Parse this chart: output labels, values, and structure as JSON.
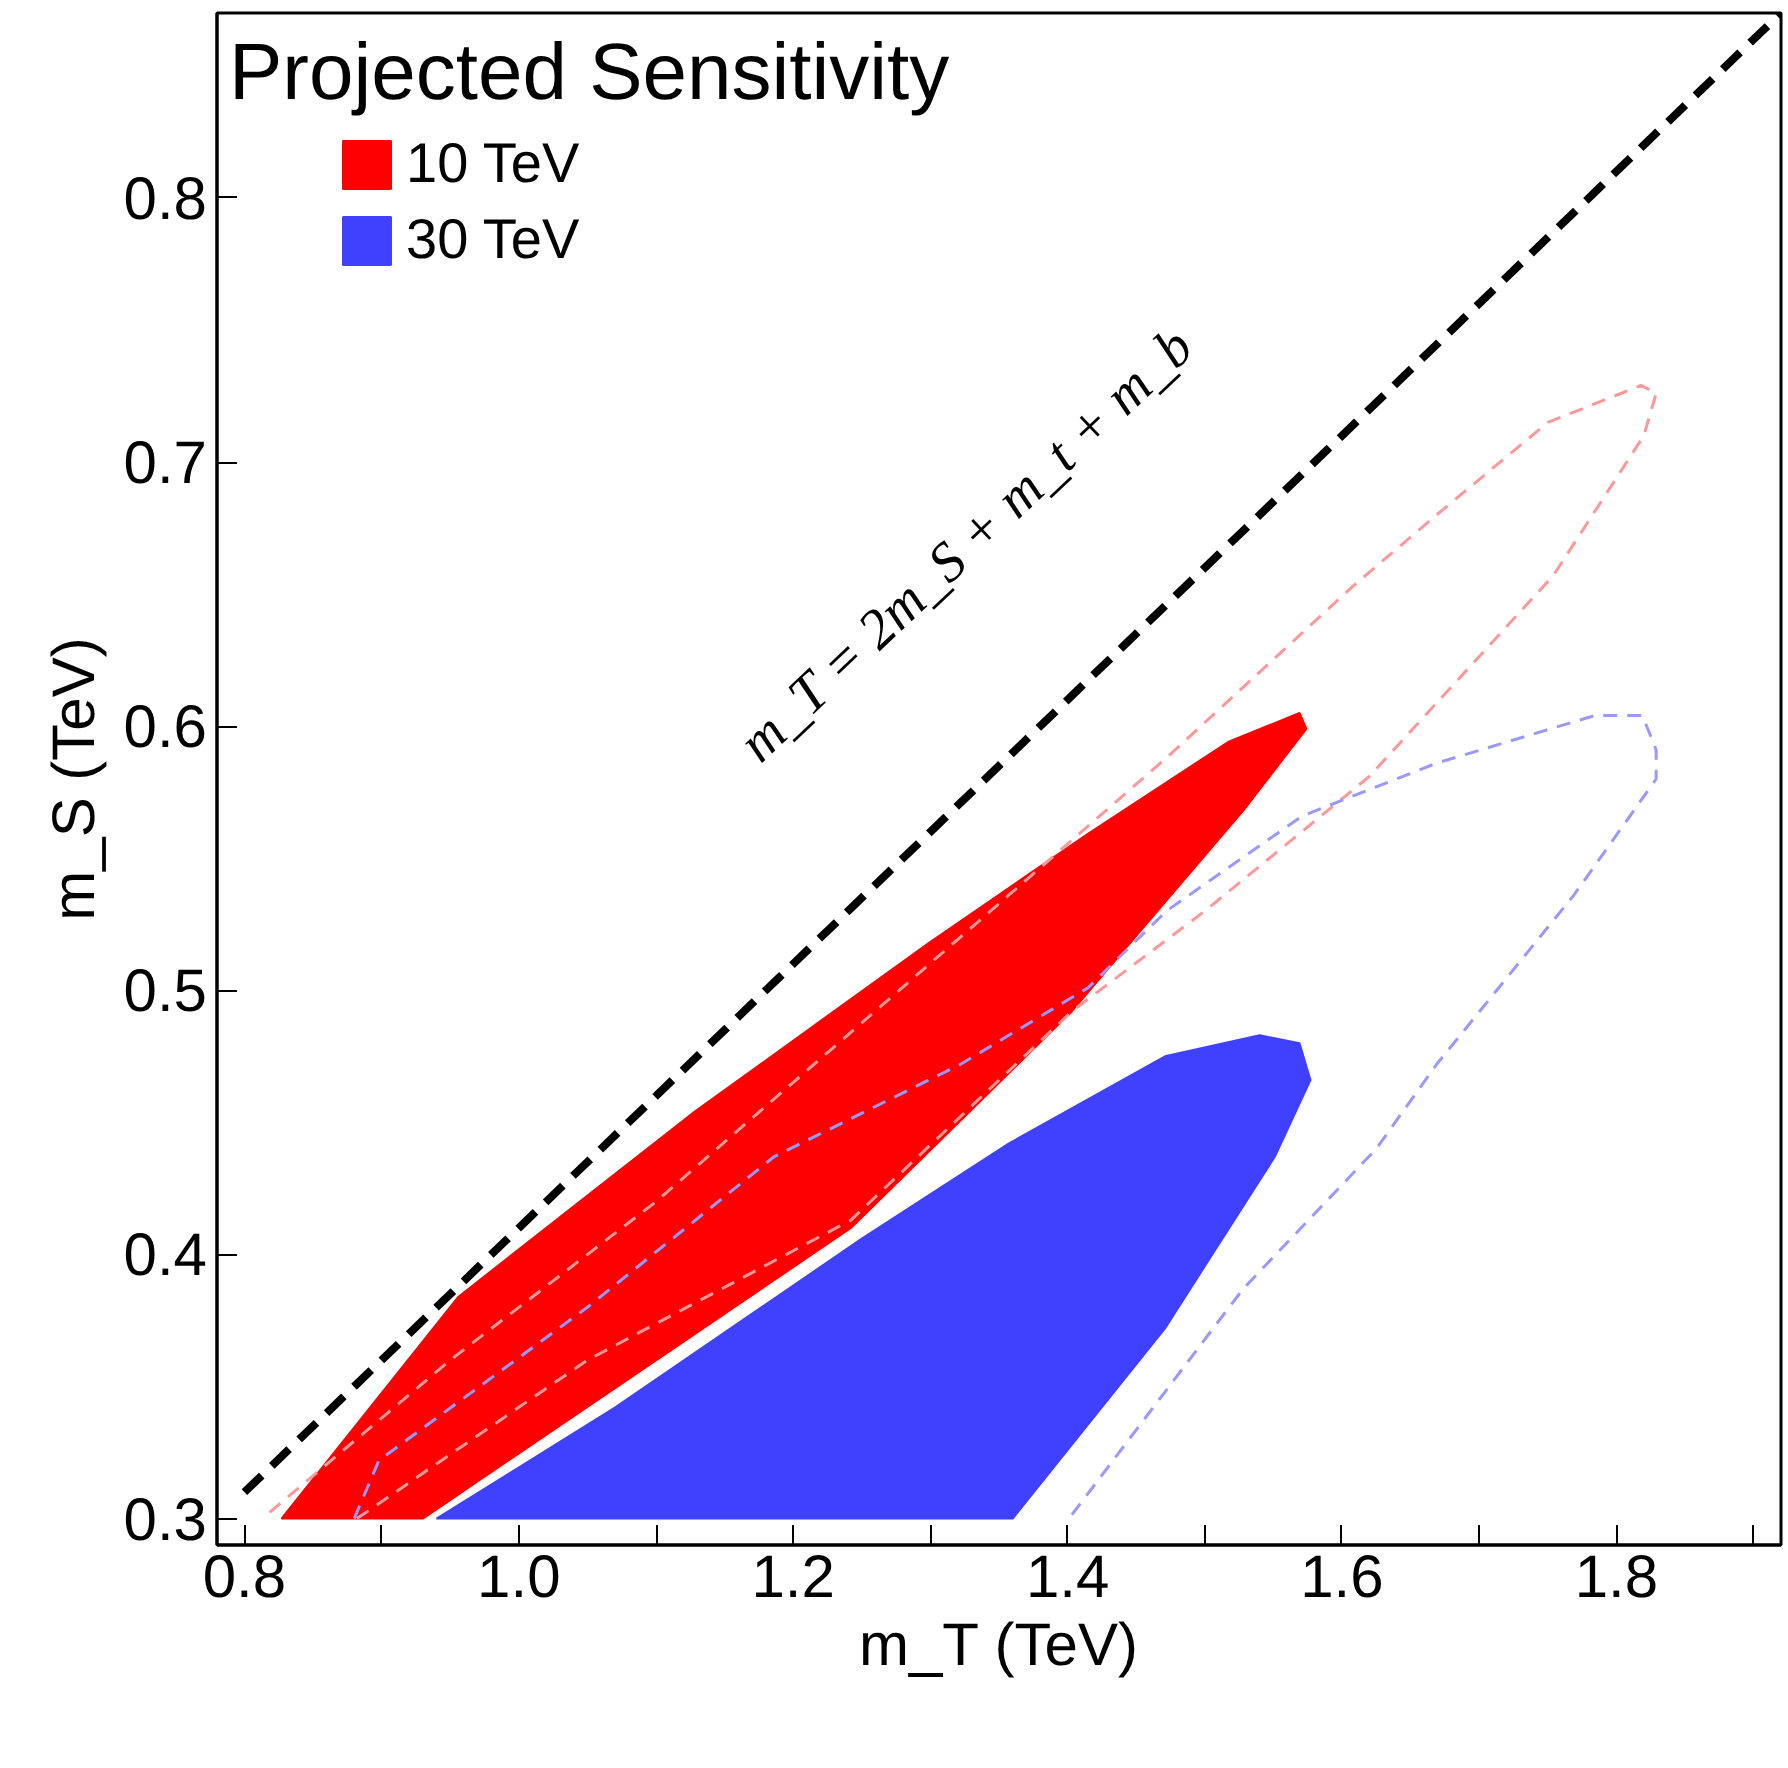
{
  "chart_data": {
    "type": "area",
    "title": "Projected Sensitivity",
    "xlabel": "m_T (TeV)",
    "ylabel": "m_S (TeV)",
    "xlim": [
      0.78,
      1.92
    ],
    "ylim": [
      0.29,
      0.87
    ],
    "xticks": [
      0.8,
      {
        "value": 0.9,
        "label": null
      },
      "1.0",
      {
        "value": 1.1,
        "label": null
      },
      1.2,
      {
        "value": 1.3,
        "label": null
      },
      1.4,
      {
        "value": 1.5,
        "label": null
      },
      1.6,
      {
        "value": 1.7,
        "label": null
      },
      1.8,
      {
        "value": 1.9,
        "label": null
      }
    ],
    "yticks": [
      0.3,
      0.4,
      0.5,
      0.6,
      0.7,
      0.8
    ],
    "legend": "top left",
    "grid": false,
    "annotations": [
      "m_T = 2m_S + m_t + m_b"
    ],
    "series": [
      {
        "name": "30 TeV",
        "color": "#4040ff",
        "x": [
          0.94,
          1.36,
          1.471,
          1.551,
          1.577,
          1.569,
          1.54,
          1.471,
          1.357,
          1.25,
          1.07,
          0.94
        ],
        "values": [
          0.3,
          0.3,
          0.372,
          0.437,
          0.466,
          0.48,
          0.483,
          0.475,
          0.442,
          0.406,
          0.342,
          0.3
        ]
      },
      {
        "name": "10 TeV",
        "color": "#ff0000",
        "x": [
          0.827,
          0.93,
          1.242,
          1.403,
          1.528,
          1.574,
          1.569,
          1.517,
          1.414,
          1.299,
          1.128,
          0.956,
          0.827
        ],
        "values": [
          0.3,
          0.3,
          0.41,
          0.492,
          0.568,
          0.599,
          0.605,
          0.594,
          0.559,
          0.518,
          0.454,
          0.384,
          0.3
        ]
      },
      {
        "type": "line",
        "line_style": "dashed",
        "color": "#ff9999",
        "x": [
          0.882,
          1.05,
          1.242,
          1.403,
          1.5,
          1.62,
          1.754,
          1.82,
          1.829,
          1.818,
          1.75,
          1.669,
          1.608,
          1.472,
          1.357,
          1.1,
          0.95,
          0.813
        ],
        "values": [
          0.3,
          0.36,
          0.413,
          0.492,
          0.53,
          0.581,
          0.657,
          0.71,
          0.726,
          0.729,
          0.715,
          0.68,
          0.653,
          0.588,
          0.536,
          0.42,
          0.36,
          0.3
        ]
      },
      {
        "type": "line",
        "line_style": "dashed",
        "color": "#9999ff",
        "x": [
          0.88,
          0.898,
          1.05,
          1.186,
          1.322,
          1.415,
          1.472,
          1.571,
          1.669,
          1.784,
          1.819,
          1.829,
          1.829,
          1.769,
          1.669,
          1.625,
          1.528,
          1.401
        ],
        "values": [
          0.3,
          0.322,
          0.38,
          0.437,
          0.472,
          0.501,
          0.53,
          0.566,
          0.586,
          0.604,
          0.604,
          0.591,
          0.58,
          0.536,
          0.472,
          0.44,
          0.387,
          0.3
        ]
      },
      {
        "type": "line",
        "line_style": "dashed",
        "color": "#000000",
        "x": [
          0.8,
          1.92
        ],
        "values": [
          0.31,
          0.87
        ]
      }
    ]
  }
}
